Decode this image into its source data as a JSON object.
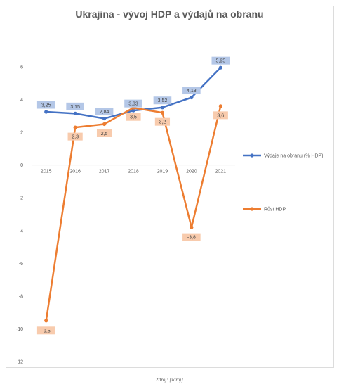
{
  "source": "Zdroj: [zdroj]",
  "chart_data": {
    "type": "line",
    "title": "Ukrajina - vývoj HDP a výdajů na obranu",
    "categories": [
      "2015",
      "2016",
      "2017",
      "2018",
      "2019",
      "2020",
      "2021"
    ],
    "ylim": [
      -12,
      6
    ],
    "yticks": [
      "-12",
      "-10",
      "-8",
      "-6",
      "-4",
      "-2",
      "0",
      "2",
      "4",
      "6"
    ],
    "grid": false,
    "legend_position": "right",
    "series": [
      {
        "name": "Výdaje na obranu (% HDP)",
        "color": "#4472c4",
        "label_bg": "#b4c7e7",
        "values": [
          3.25,
          3.15,
          2.84,
          3.33,
          3.52,
          4.13,
          5.95
        ],
        "labels": [
          "3,25",
          "3,15",
          "2,84",
          "3,33",
          "3,52",
          "4,13",
          "5,95"
        ]
      },
      {
        "name": "Růst HDP",
        "color": "#ed7d31",
        "label_bg": "#f8cbad",
        "values": [
          -9.5,
          2.3,
          2.5,
          3.5,
          3.2,
          -3.8,
          3.6
        ],
        "labels": [
          "-9,5",
          "2,3",
          "2,5",
          "3,5",
          "3,2",
          "-3,8",
          "3,6"
        ]
      }
    ]
  }
}
